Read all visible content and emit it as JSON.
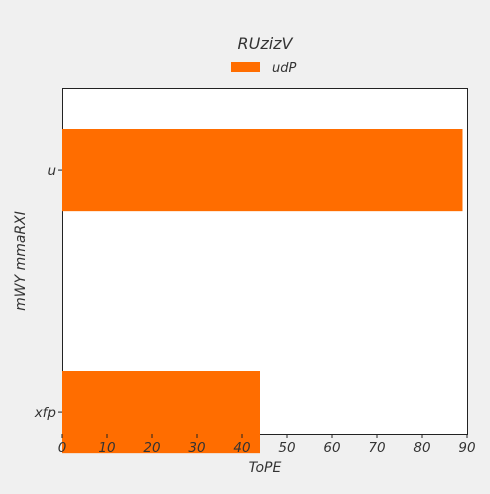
{
  "chart_data": {
    "type": "bar",
    "orientation": "horizontal",
    "title": "RUzizV",
    "xlabel": "ToPE",
    "ylabel": "mWY mmaRXI",
    "categories": [
      "u",
      "xfp"
    ],
    "series": [
      {
        "name": "udP",
        "values": [
          89,
          44
        ],
        "color": "#ff6d00"
      }
    ],
    "xlim": [
      0,
      90
    ],
    "xticks": [
      0,
      10,
      20,
      30,
      40,
      50,
      60,
      70,
      80,
      90
    ],
    "grid": false,
    "legend_position": "top-center"
  }
}
